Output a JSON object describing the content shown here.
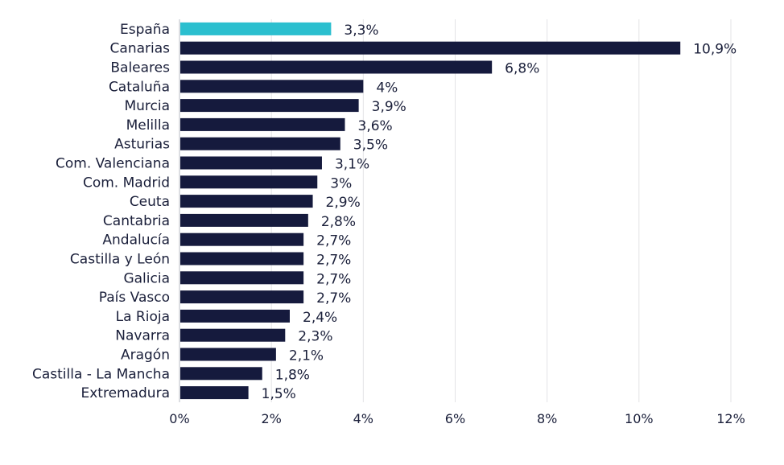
{
  "chart_data": {
    "type": "bar",
    "orientation": "horizontal",
    "categories": [
      "España",
      "Canarias",
      "Baleares",
      "Cataluña",
      "Murcia",
      "Melilla",
      "Asturias",
      "Com. Valenciana",
      "Com. Madrid",
      "Ceuta",
      "Cantabria",
      "Andalucía",
      "Castilla y León",
      "Galicia",
      "País Vasco",
      "La Rioja",
      "Navarra",
      "Aragón",
      "Castilla - La Mancha",
      "Extremadura"
    ],
    "values": [
      3.3,
      10.9,
      6.8,
      4.0,
      3.9,
      3.6,
      3.5,
      3.1,
      3.0,
      2.9,
      2.8,
      2.7,
      2.7,
      2.7,
      2.7,
      2.4,
      2.3,
      2.1,
      1.8,
      1.5
    ],
    "value_labels": [
      "3,3%",
      "10,9%",
      "6,8%",
      "4%",
      "3,9%",
      "3,6%",
      "3,5%",
      "3,1%",
      "3%",
      "2,9%",
      "2,8%",
      "2,7%",
      "2,7%",
      "2,7%",
      "2,7%",
      "2,4%",
      "2,3%",
      "2,1%",
      "1,8%",
      "1,5%"
    ],
    "xlim": [
      0,
      12
    ],
    "xticks": [
      0,
      2,
      4,
      6,
      8,
      10,
      12
    ],
    "xtick_labels": [
      "0%",
      "2%",
      "4%",
      "6%",
      "8%",
      "10%",
      "12%"
    ],
    "title": "",
    "xlabel": "",
    "ylabel": "",
    "grid": "vertical",
    "legend": "none",
    "highlight_category": "España",
    "colors": {
      "highlight": "#2bbfcf",
      "bar": "#151a3d",
      "text": "#1a1f3a",
      "grid": "#e3e3e6"
    }
  }
}
